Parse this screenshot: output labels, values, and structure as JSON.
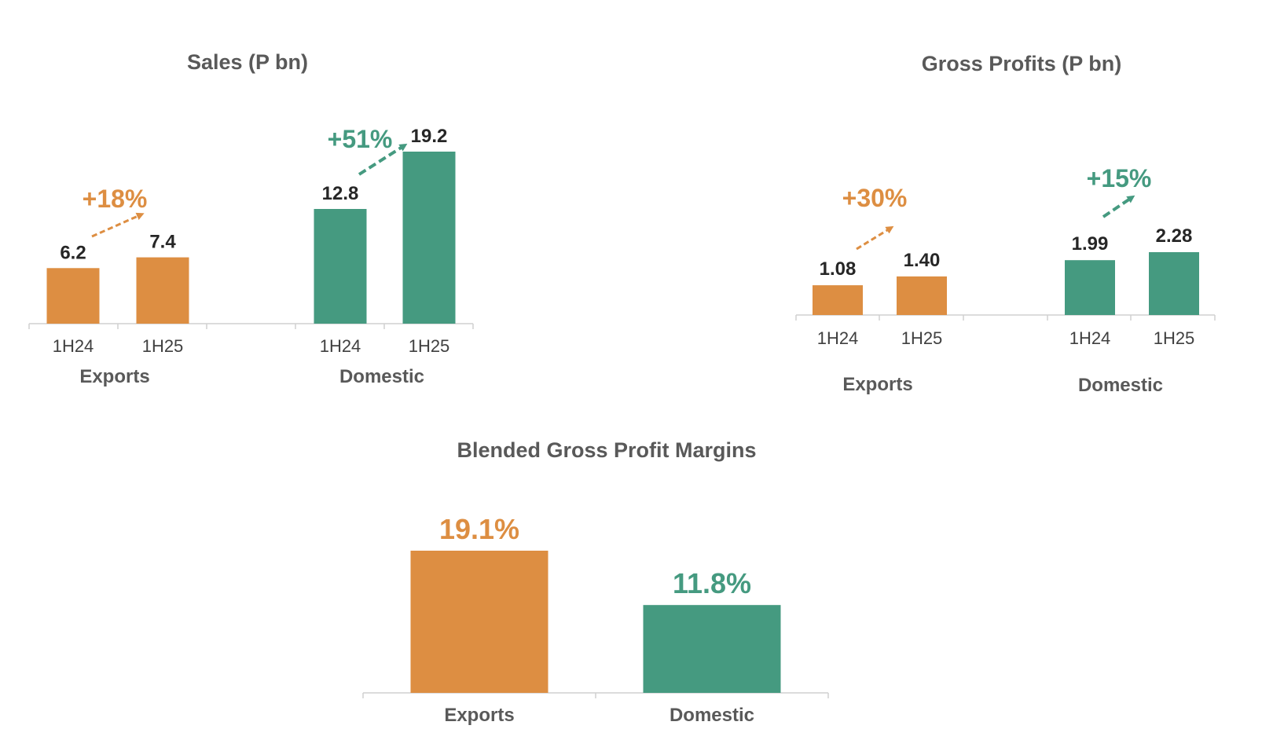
{
  "colors": {
    "exports": "#dd8e42",
    "domestic": "#459a80"
  },
  "chart_data": [
    {
      "type": "bar",
      "title": "Sales (P bn)",
      "groups": [
        {
          "name": "Exports",
          "categories": [
            "1H24",
            "1H25"
          ],
          "values": [
            6.2,
            7.4
          ],
          "labels": [
            "6.2",
            "7.4"
          ],
          "growth": "+18%",
          "color_key": "exports"
        },
        {
          "name": "Domestic",
          "categories": [
            "1H24",
            "1H25"
          ],
          "values": [
            12.8,
            19.2
          ],
          "labels": [
            "12.8",
            "19.2"
          ],
          "growth": "+51%",
          "color_key": "domestic"
        }
      ],
      "ylim": [
        0,
        20
      ]
    },
    {
      "type": "bar",
      "title": "Gross Profits (P bn)",
      "groups": [
        {
          "name": "Exports",
          "categories": [
            "1H24",
            "1H25"
          ],
          "values": [
            1.08,
            1.4
          ],
          "labels": [
            "1.08",
            "1.40"
          ],
          "growth": "+30%",
          "color_key": "exports"
        },
        {
          "name": "Domestic",
          "categories": [
            "1H24",
            "1H25"
          ],
          "values": [
            1.99,
            2.28
          ],
          "labels": [
            "1.99",
            "2.28"
          ],
          "growth": "+15%",
          "color_key": "domestic"
        }
      ],
      "ylim": [
        0,
        7
      ]
    },
    {
      "type": "bar",
      "title": "Blended Gross Profit Margins",
      "categories": [
        "Exports",
        "Domestic"
      ],
      "values": [
        19.1,
        11.8
      ],
      "labels": [
        "19.1%",
        "11.8%"
      ],
      "color_keys": [
        "exports",
        "domestic"
      ],
      "ylim": [
        0,
        25
      ]
    }
  ]
}
